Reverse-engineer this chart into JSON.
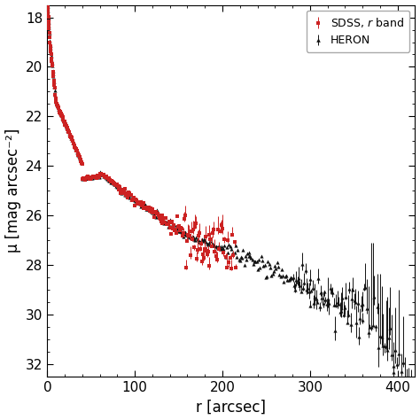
{
  "title": "",
  "xlabel": "r [arcsec]",
  "ylabel": "μ [mag arcsec⁻²]",
  "xlim": [
    0,
    420
  ],
  "ylim": [
    32.5,
    17.5
  ],
  "yticks": [
    18,
    20,
    22,
    24,
    26,
    28,
    30,
    32
  ],
  "xticks": [
    0,
    100,
    200,
    300,
    400
  ],
  "sdss_color": "#cc2222",
  "heron_color": "#111111",
  "background_color": "#ffffff"
}
